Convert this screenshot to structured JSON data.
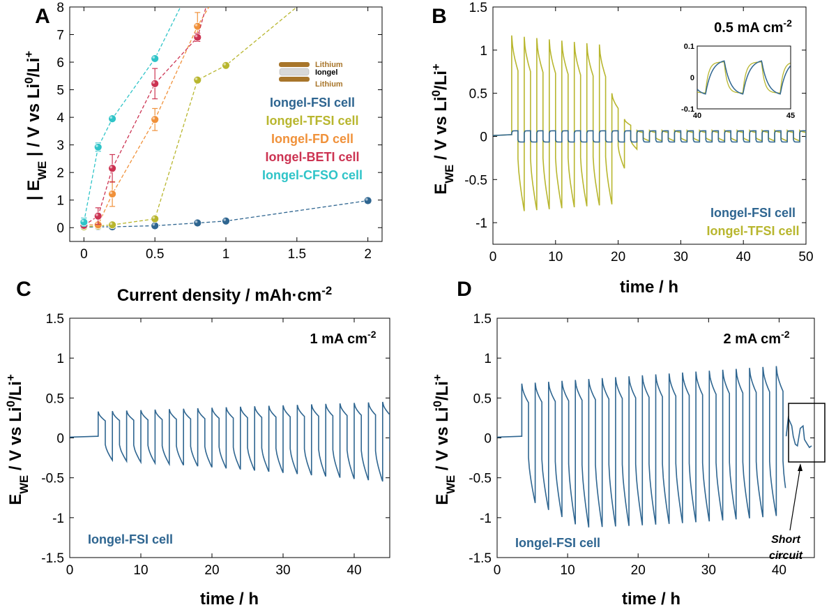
{
  "colors": {
    "FSI": "#2e6590",
    "TFSI": "#b8b62e",
    "FD": "#f0913a",
    "BETI": "#cc3352",
    "CFSO": "#2fc4c8",
    "lithium": "#a8752a"
  },
  "chart_data": [
    {
      "panel": "A",
      "type": "scatter",
      "xlabel": "Current density / mAh·cm-2",
      "ylabel": "| EWE | / V vs Li0/Li+",
      "xlim": [
        -0.1,
        2.1
      ],
      "ylim": [
        -0.5,
        8
      ],
      "xticks": [
        "0",
        "0.5",
        "1",
        "1.5",
        "2"
      ],
      "yticks": [
        "0",
        "1",
        "2",
        "3",
        "4",
        "5",
        "6",
        "7",
        "8"
      ],
      "series": [
        {
          "name": "Iongel-FSI cell",
          "color_key": "FSI",
          "x": [
            0,
            0.1,
            0.2,
            0.5,
            0.8,
            1,
            2
          ],
          "y": [
            0.02,
            0.03,
            0.03,
            0.07,
            0.17,
            0.24,
            0.98
          ],
          "err": [
            0,
            0,
            0,
            0,
            0.05,
            0.05,
            0.1
          ],
          "line_end": null
        },
        {
          "name": "Iongel-TFSI cell",
          "color_key": "TFSI",
          "x": [
            0,
            0.1,
            0.2,
            0.5,
            0.8,
            1
          ],
          "y": [
            0.03,
            0.06,
            0.1,
            0.32,
            5.35,
            5.88
          ],
          "err": [
            0,
            0,
            0,
            0,
            0,
            0
          ],
          "line_end": [
            1.5,
            8
          ]
        },
        {
          "name": "Iongel-FD cell",
          "color_key": "FD",
          "x": [
            0,
            0.1,
            0.2,
            0.5,
            0.8
          ],
          "y": [
            0.1,
            0.1,
            1.22,
            3.92,
            7.3
          ],
          "err": [
            0,
            0.1,
            0.45,
            0.4,
            0.5
          ],
          "line_end": [
            0.88,
            8
          ]
        },
        {
          "name": "Iongel-BETI cell",
          "color_key": "BETI",
          "x": [
            0,
            0.1,
            0.2,
            0.5,
            0.8
          ],
          "y": [
            0.08,
            0.42,
            2.15,
            5.22,
            6.9
          ],
          "err": [
            0,
            0.3,
            0.5,
            0.55,
            0.15
          ],
          "line_end": [
            0.86,
            8
          ]
        },
        {
          "name": "Iongel-CFSO cell",
          "color_key": "CFSO",
          "x": [
            0,
            0.1,
            0.2,
            0.5
          ],
          "y": [
            0.2,
            2.92,
            3.95,
            6.13
          ],
          "err": [
            0.15,
            0.15,
            0,
            0
          ],
          "line_end": [
            0.68,
            8
          ]
        }
      ],
      "inset_labels": {
        "top": "Lithium",
        "middle": "Iongel",
        "bottom": "Lithium"
      }
    },
    {
      "panel": "B",
      "type": "line",
      "xlabel": "time / h",
      "ylabel": "EWE / V vs Li0/Li+",
      "xlim": [
        0,
        50
      ],
      "ylim": [
        -1.25,
        1.5
      ],
      "xticks": [
        "0",
        "10",
        "20",
        "30",
        "40",
        "50"
      ],
      "yticks": [
        "-1",
        "-0.5",
        "0",
        "0.5",
        "1",
        "1.5"
      ],
      "annotation": "0.5 mA cm-2",
      "series": [
        {
          "name": "Iongel-FSI cell",
          "color_key": "FSI",
          "period": 2,
          "start": 3,
          "peak_start": 0.06,
          "peak_end": 0.06
        },
        {
          "name": "Iongel-TFSI cell",
          "color_key": "TFSI",
          "period": 2,
          "start": 3,
          "peak_start": 1.17,
          "peak_end": 0.06
        }
      ],
      "inset": {
        "xlim": [
          40,
          45
        ],
        "ylim": [
          -0.1,
          0.1
        ],
        "xticks": [
          "40",
          "45"
        ],
        "yticks": [
          "0.1",
          "0",
          "-0.1"
        ]
      }
    },
    {
      "panel": "C",
      "type": "line",
      "xlabel": "time / h",
      "ylabel": "EWE / V vs Li0/Li+",
      "xlim": [
        0,
        45
      ],
      "ylim": [
        -1.5,
        1.5
      ],
      "xticks": [
        "0",
        "10",
        "20",
        "30",
        "40"
      ],
      "yticks": [
        "-1.5",
        "-1",
        "-0.5",
        "0",
        "0.5",
        "1",
        "1.5"
      ],
      "annotation": "1 mA cm-2",
      "series": [
        {
          "name": "Iongel-FSI cell",
          "color_key": "FSI",
          "period": 2,
          "start": 4,
          "peak_start": 0.33,
          "peak_end": 0.44
        }
      ]
    },
    {
      "panel": "D",
      "type": "line",
      "xlabel": "time / h",
      "ylabel": "EWE / V vs Li0/Li+",
      "xlim": [
        0,
        45
      ],
      "ylim": [
        -1.5,
        1.5
      ],
      "xticks": [
        "0",
        "10",
        "20",
        "30",
        "40"
      ],
      "yticks": [
        "-1.5",
        "-1",
        "-0.5",
        "0",
        "0.5",
        "1",
        "1.5"
      ],
      "annotation": "2 mA cm-2",
      "short_circuit_label": [
        "Short",
        "circuit"
      ],
      "series": [
        {
          "name": "Iongel-FSI cell",
          "color_key": "FSI",
          "period": 1.9,
          "start": 3.5,
          "peak_start": 0.7,
          "peak_end": 0.9
        }
      ]
    }
  ],
  "panel_labels": [
    "A",
    "B",
    "C",
    "D"
  ]
}
